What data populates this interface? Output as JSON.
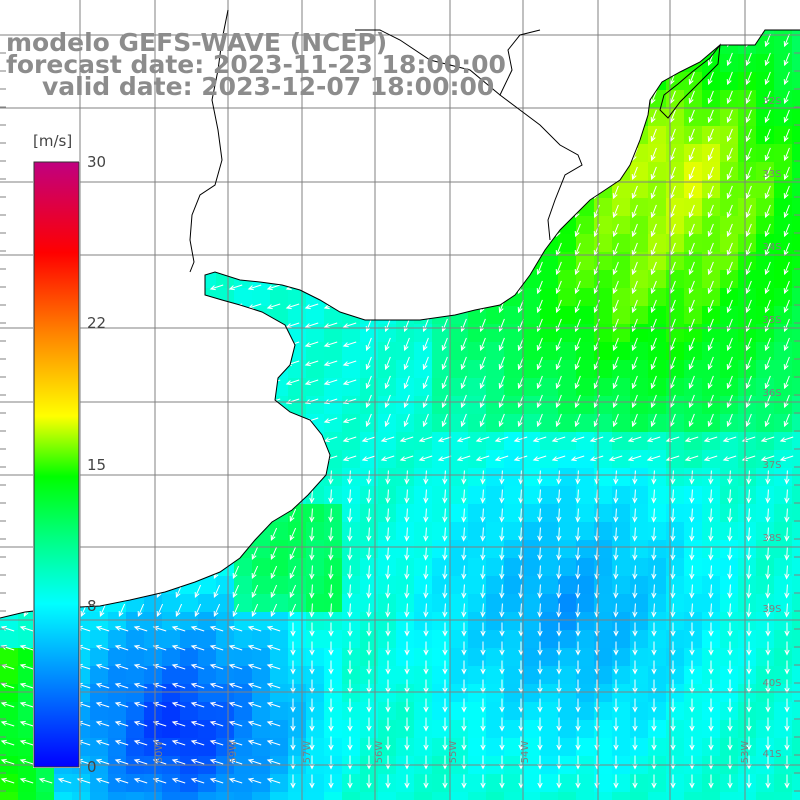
{
  "title": {
    "model": "modelo GEFS-WAVE (NCEP)",
    "forecast": "forecast date: 2023-11-23 18:00:00",
    "valid": "valid date: 2023-12-07 18:00:00"
  },
  "colorbar": {
    "unit": "[m/s]",
    "ticks": [
      "30",
      "22",
      "15",
      "8",
      "0"
    ],
    "tick_values": [
      30,
      22,
      15,
      8,
      0
    ],
    "range": [
      0,
      30
    ],
    "colors": [
      "#0000ff",
      "#00a0ff",
      "#00ffff",
      "#00ff00",
      "#ffff00",
      "#ff8000",
      "#ff0000",
      "#c00080"
    ]
  },
  "map": {
    "lat_labels": [
      "32S",
      "33S",
      "34S",
      "35S",
      "36S",
      "37S",
      "38S",
      "39S",
      "40S",
      "41S"
    ],
    "lon_labels": [
      "60W",
      "59W",
      "57W",
      "56W",
      "55W",
      "54W",
      "53W"
    ],
    "land_color": "#ffffff",
    "grid_color": "#808080",
    "coast_color": "#000000",
    "arrow_color": "#ffffff"
  }
}
